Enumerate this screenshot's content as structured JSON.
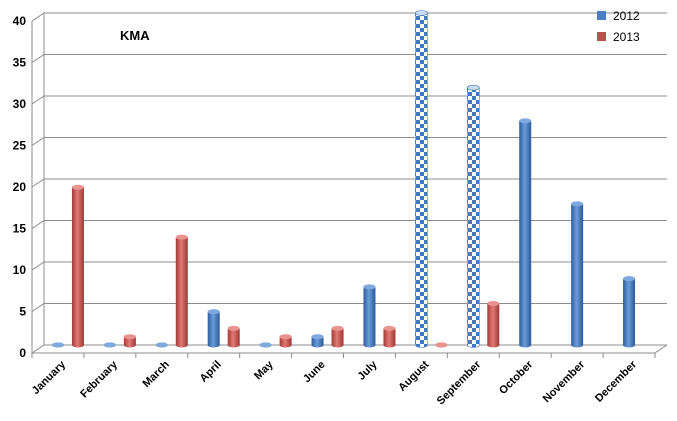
{
  "chart_data": {
    "type": "bar",
    "title": "KMA",
    "xlabel": "",
    "ylabel": "",
    "ylim": [
      0,
      40
    ],
    "yticks": [
      0,
      5,
      10,
      15,
      20,
      25,
      30,
      35,
      40
    ],
    "grid": true,
    "legend": "top-right",
    "categories": [
      "January",
      "February",
      "March",
      "April",
      "May",
      "June",
      "July",
      "August",
      "September",
      "October",
      "November",
      "December"
    ],
    "series": [
      {
        "name": "2012",
        "color": "#4a7ec5",
        "pattern_categories": [
          "August",
          "September"
        ],
        "values": [
          0,
          0,
          0,
          4,
          0,
          1,
          7,
          40,
          31,
          27,
          17,
          8
        ]
      },
      {
        "name": "2013",
        "color": "#c0504d",
        "values": [
          19,
          1,
          13,
          2,
          1,
          2,
          2,
          0,
          5,
          null,
          null,
          null
        ]
      }
    ]
  }
}
